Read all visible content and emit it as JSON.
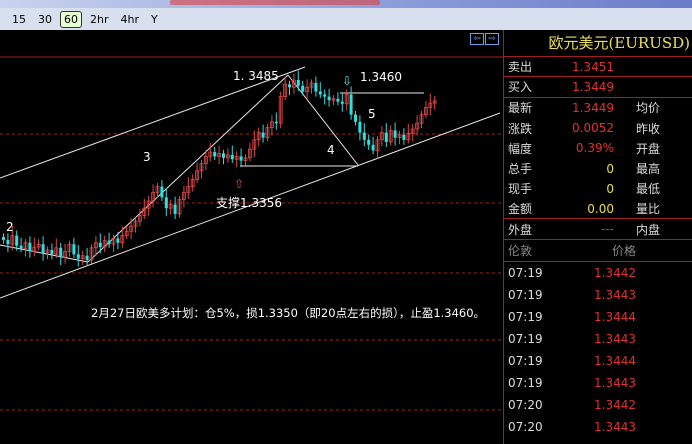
{
  "timeframes": [
    "15",
    "30",
    "60",
    "2hr",
    "4hr",
    "Y"
  ],
  "active_timeframe": "60",
  "colors": {
    "up": "#e04848",
    "down": "#30e0e0",
    "grid": "#a02020",
    "background": "#000000"
  },
  "annotations": {
    "wave2": "2",
    "wave3": "3",
    "wave4": "4",
    "wave5": "5",
    "high": "1. 3485",
    "target": "1.3460",
    "support": "支撑1.3356"
  },
  "plan_text": "2月27日欧美多计划：仓5%，损1.3350（即20点左右的损），止盈1.3460。",
  "quote": {
    "title": "欧元美元(EURUSD)",
    "rows": [
      {
        "label": "卖出",
        "value": "1.3451",
        "label2": ""
      },
      {
        "label": "买入",
        "value": "1.3449",
        "label2": ""
      },
      {
        "label": "最新",
        "value": "1.3449",
        "label2": "均价"
      },
      {
        "label": "涨跌",
        "value": "0.0052",
        "label2": "昨收"
      },
      {
        "label": "幅度",
        "value": "0.39%",
        "label2": "开盘"
      },
      {
        "label": "总手",
        "value": "0",
        "label2": "最高"
      },
      {
        "label": "现手",
        "value": "0",
        "label2": "最低"
      },
      {
        "label": "金额",
        "value": "0.00",
        "label2": "量比"
      },
      {
        "label": "外盘",
        "value": "---",
        "label2": "内盘"
      }
    ],
    "ticks_header": {
      "time": "伦敦",
      "price": "价格"
    },
    "ticks": [
      {
        "time": "07:19",
        "price": "1.3442"
      },
      {
        "time": "07:19",
        "price": "1.3443"
      },
      {
        "time": "07:19",
        "price": "1.3444"
      },
      {
        "time": "07:19",
        "price": "1.3443"
      },
      {
        "time": "07:19",
        "price": "1.3444"
      },
      {
        "time": "07:19",
        "price": "1.3443"
      },
      {
        "time": "07:20",
        "price": "1.3442"
      },
      {
        "time": "07:20",
        "price": "1.3443"
      }
    ]
  },
  "chart_data": {
    "type": "candlestick",
    "closes": [
      1.3256,
      1.325,
      1.3262,
      1.3248,
      1.3244,
      1.3252,
      1.324,
      1.3246,
      1.325,
      1.3238,
      1.3242,
      1.3236,
      1.3245,
      1.3232,
      1.324,
      1.325,
      1.3236,
      1.323,
      1.3234,
      1.3228,
      1.3245,
      1.3252,
      1.3246,
      1.3255,
      1.325,
      1.3258,
      1.3252,
      1.3262,
      1.3268,
      1.3275,
      1.3282,
      1.329,
      1.33,
      1.331,
      1.3322,
      1.333,
      1.3315,
      1.33,
      1.3305,
      1.3292,
      1.3312,
      1.3322,
      1.333,
      1.334,
      1.3352,
      1.3362,
      1.3372,
      1.3378,
      1.3372,
      1.3376,
      1.337,
      1.3374,
      1.3368,
      1.3372,
      1.3366,
      1.337,
      1.3382,
      1.3395,
      1.3405,
      1.3398,
      1.3412,
      1.342,
      1.3418,
      1.3455,
      1.3472,
      1.3468,
      1.3478,
      1.347,
      1.3462,
      1.3468,
      1.3474,
      1.3462,
      1.3458,
      1.3455,
      1.345,
      1.3452,
      1.3448,
      1.3445,
      1.3458,
      1.343,
      1.342,
      1.3405,
      1.3395,
      1.3388,
      1.338,
      1.3395,
      1.3405,
      1.3392,
      1.3408,
      1.3398,
      1.3402,
      1.3395,
      1.3404,
      1.341,
      1.3418,
      1.343,
      1.344,
      1.3446,
      1.3449
    ],
    "levels": {
      "high": 1.3485,
      "target": 1.346,
      "support": 1.3356
    }
  }
}
